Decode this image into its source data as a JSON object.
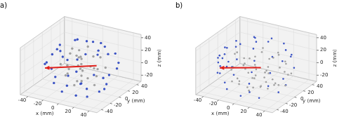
{
  "chart_data": [
    {
      "type": "scatter",
      "title": "a)",
      "x_label": "x (mm)",
      "y_label": "y (mm)",
      "z_label": "z (mm)",
      "xlim": [
        -50,
        50
      ],
      "ylim": [
        -50,
        50
      ],
      "zlim": [
        -30,
        45
      ],
      "xticks": [
        -40,
        -20,
        0,
        20,
        40
      ],
      "yticks": [
        -40,
        -20,
        0,
        20,
        40
      ],
      "zticks": [
        -20,
        0,
        20,
        40
      ],
      "grid": true,
      "series": [
        {
          "color": "#3a52c4",
          "marker": "circle",
          "values": [
            [
              20,
              20,
              32
            ],
            [
              -20,
              22,
              30
            ],
            [
              0,
              28,
              30
            ],
            [
              25,
              -5,
              33
            ],
            [
              -25,
              -10,
              30
            ],
            [
              10,
              -25,
              31
            ],
            [
              -10,
              10,
              40
            ],
            [
              5,
              5,
              44
            ],
            [
              15,
              -15,
              36
            ],
            [
              -15,
              -20,
              35
            ],
            [
              30,
              10,
              28
            ],
            [
              -30,
              5,
              28
            ],
            [
              0,
              -30,
              30
            ],
            [
              12,
              25,
              33
            ],
            [
              25,
              15,
              -24
            ],
            [
              -20,
              25,
              -22
            ],
            [
              0,
              30,
              -24
            ],
            [
              30,
              -10,
              -22
            ],
            [
              -28,
              -12,
              -24
            ],
            [
              10,
              -28,
              -25
            ],
            [
              -10,
              -25,
              -26
            ],
            [
              20,
              -20,
              -28
            ],
            [
              -5,
              10,
              -29
            ],
            [
              8,
              0,
              -29
            ],
            [
              15,
              25,
              -22
            ],
            [
              -25,
              15,
              -25
            ],
            [
              28,
              5,
              -26
            ],
            [
              -15,
              -5,
              -28
            ],
            [
              -38,
              -15,
              5
            ],
            [
              -40,
              5,
              10
            ],
            [
              -35,
              20,
              0
            ],
            [
              -30,
              -25,
              15
            ],
            [
              35,
              25,
              8
            ],
            [
              40,
              -5,
              5
            ],
            [
              30,
              30,
              -5
            ],
            [
              -10,
              -40,
              5
            ],
            [
              20,
              -35,
              0
            ],
            [
              -38,
              0,
              -10
            ],
            [
              0,
              40,
              10
            ],
            [
              25,
              35,
              15
            ]
          ]
        },
        {
          "color": "#a0a0a0",
          "marker": "circle",
          "values": [
            [
              0,
              0,
              20
            ],
            [
              2,
              -2,
              10
            ],
            [
              -1,
              1,
              0
            ],
            [
              1,
              0,
              -10
            ],
            [
              0,
              2,
              -20
            ],
            [
              -2,
              0,
              30
            ],
            [
              10,
              5,
              5
            ],
            [
              -10,
              8,
              15
            ],
            [
              15,
              -10,
              -5
            ],
            [
              -15,
              -8,
              -10
            ],
            [
              5,
              20,
              12
            ],
            [
              -5,
              -18,
              8
            ],
            [
              20,
              10,
              20
            ],
            [
              -20,
              5,
              -15
            ],
            [
              8,
              -12,
              25
            ],
            [
              -12,
              15,
              -5
            ],
            [
              25,
              -5,
              10
            ],
            [
              -25,
              -2,
              2
            ],
            [
              3,
              25,
              -10
            ],
            [
              -3,
              -25,
              18
            ],
            [
              12,
              15,
              -15
            ],
            [
              -8,
              -10,
              28
            ],
            [
              18,
              0,
              -20
            ],
            [
              -18,
              12,
              22
            ],
            [
              0,
              -8,
              -15
            ],
            [
              6,
              6,
              35
            ],
            [
              -6,
              -4,
              -25
            ],
            [
              14,
              -20,
              12
            ],
            [
              -14,
              20,
              5
            ],
            [
              22,
              18,
              0
            ]
          ]
        },
        {
          "type": "line",
          "color": "#e0201b",
          "marker": "arrow",
          "values": [
            [
              15,
              10,
              5
            ],
            [
              -35,
              -20,
              2
            ]
          ]
        }
      ]
    },
    {
      "type": "scatter",
      "title": "b)",
      "x_label": "x (mm)",
      "y_label": "y (mm)",
      "z_label": "z (mm)",
      "xlim": [
        -50,
        50
      ],
      "ylim": [
        -50,
        50
      ],
      "zlim": [
        -30,
        45
      ],
      "xticks": [
        -40,
        -20,
        0,
        20,
        40
      ],
      "yticks": [
        -40,
        -20,
        0,
        20,
        40
      ],
      "zticks": [
        -20,
        0,
        20,
        40
      ],
      "grid": true,
      "series": [
        {
          "color": "#3a52c4",
          "marker": "circle",
          "values": [
            [
              30,
              15,
              32
            ],
            [
              20,
              28,
              33
            ],
            [
              0,
              35,
              32
            ],
            [
              -20,
              30,
              31
            ],
            [
              -33,
              12,
              30
            ],
            [
              -35,
              -10,
              30
            ],
            [
              -25,
              -28,
              31
            ],
            [
              -5,
              -35,
              32
            ],
            [
              15,
              -30,
              33
            ],
            [
              28,
              -12,
              34
            ],
            [
              10,
              10,
              42
            ],
            [
              -10,
              15,
              40
            ],
            [
              -15,
              -10,
              41
            ],
            [
              5,
              -15,
              42
            ],
            [
              0,
              0,
              44
            ],
            [
              30,
              15,
              -24
            ],
            [
              18,
              30,
              -25
            ],
            [
              -2,
              35,
              -24
            ],
            [
              -22,
              28,
              -25
            ],
            [
              -35,
              10,
              -24
            ],
            [
              -34,
              -12,
              -25
            ],
            [
              -22,
              -28,
              -24
            ],
            [
              0,
              -35,
              -25
            ],
            [
              20,
              -28,
              -26
            ],
            [
              32,
              -5,
              -25
            ],
            [
              10,
              10,
              -29
            ],
            [
              -12,
              5,
              -29
            ],
            [
              0,
              -15,
              -29
            ],
            [
              -42,
              -10,
              15
            ],
            [
              -44,
              0,
              5
            ],
            [
              -42,
              10,
              -5
            ],
            [
              -40,
              -18,
              -8
            ],
            [
              -38,
              20,
              15
            ],
            [
              -40,
              15,
              -15
            ],
            [
              -36,
              -24,
              20
            ],
            [
              -44,
              -5,
              -5
            ],
            [
              -30,
              -30,
              0
            ],
            [
              -41,
              5,
              20
            ],
            [
              -38,
              -20,
              10
            ],
            [
              -43,
              8,
              -12
            ],
            [
              25,
              35,
              10
            ],
            [
              35,
              25,
              0
            ],
            [
              10,
              42,
              -5
            ],
            [
              30,
              28,
              18
            ]
          ]
        },
        {
          "color": "#a0a0a0",
          "marker": "circle",
          "values": [
            [
              0,
              0,
              0
            ],
            [
              5,
              -10,
              10
            ],
            [
              10,
              -20,
              20
            ],
            [
              15,
              -30,
              5
            ],
            [
              20,
              -25,
              -10
            ],
            [
              25,
              -20,
              15
            ],
            [
              30,
              -15,
              0
            ],
            [
              35,
              -10,
              -10
            ],
            [
              40,
              -5,
              10
            ],
            [
              30,
              -25,
              25
            ],
            [
              10,
              -35,
              15
            ],
            [
              0,
              -38,
              0
            ],
            [
              -5,
              -30,
              -10
            ],
            [
              5,
              -25,
              -20
            ],
            [
              15,
              -15,
              -15
            ],
            [
              20,
              -5,
              25
            ],
            [
              25,
              0,
              -15
            ],
            [
              35,
              5,
              20
            ],
            [
              40,
              10,
              0
            ],
            [
              30,
              20,
              -10
            ],
            [
              20,
              15,
              25
            ],
            [
              10,
              5,
              -20
            ],
            [
              0,
              -15,
              25
            ],
            [
              -5,
              -20,
              15
            ],
            [
              -10,
              -25,
              -5
            ],
            [
              -15,
              -30,
              10
            ],
            [
              -20,
              -20,
              -15
            ],
            [
              -10,
              -10,
              20
            ],
            [
              -15,
              0,
              5
            ],
            [
              -20,
              10,
              -10
            ],
            [
              -25,
              -5,
              20
            ],
            [
              -30,
              0,
              -5
            ],
            [
              -10,
              15,
              10
            ],
            [
              0,
              20,
              -15
            ],
            [
              5,
              30,
              5
            ],
            [
              15,
              25,
              15
            ],
            [
              25,
              10,
              5
            ],
            [
              35,
              -20,
              -5
            ],
            [
              12,
              -8,
              35
            ],
            [
              -8,
              -6,
              -28
            ],
            [
              28,
              -30,
              10
            ],
            [
              18,
              -38,
              -5
            ],
            [
              8,
              -15,
              0
            ],
            [
              -2,
              -5,
              -12
            ],
            [
              22,
              -10,
              5
            ],
            [
              38,
              0,
              -15
            ],
            [
              32,
              12,
              12
            ],
            [
              -18,
              -12,
              28
            ],
            [
              3,
              10,
              30
            ],
            [
              14,
              2,
              -28
            ]
          ]
        },
        {
          "type": "line",
          "color": "#e0201b",
          "marker": "arrow",
          "values": [
            [
              5,
              2,
              3
            ],
            [
              -36,
              -20,
              2
            ]
          ]
        }
      ]
    }
  ]
}
